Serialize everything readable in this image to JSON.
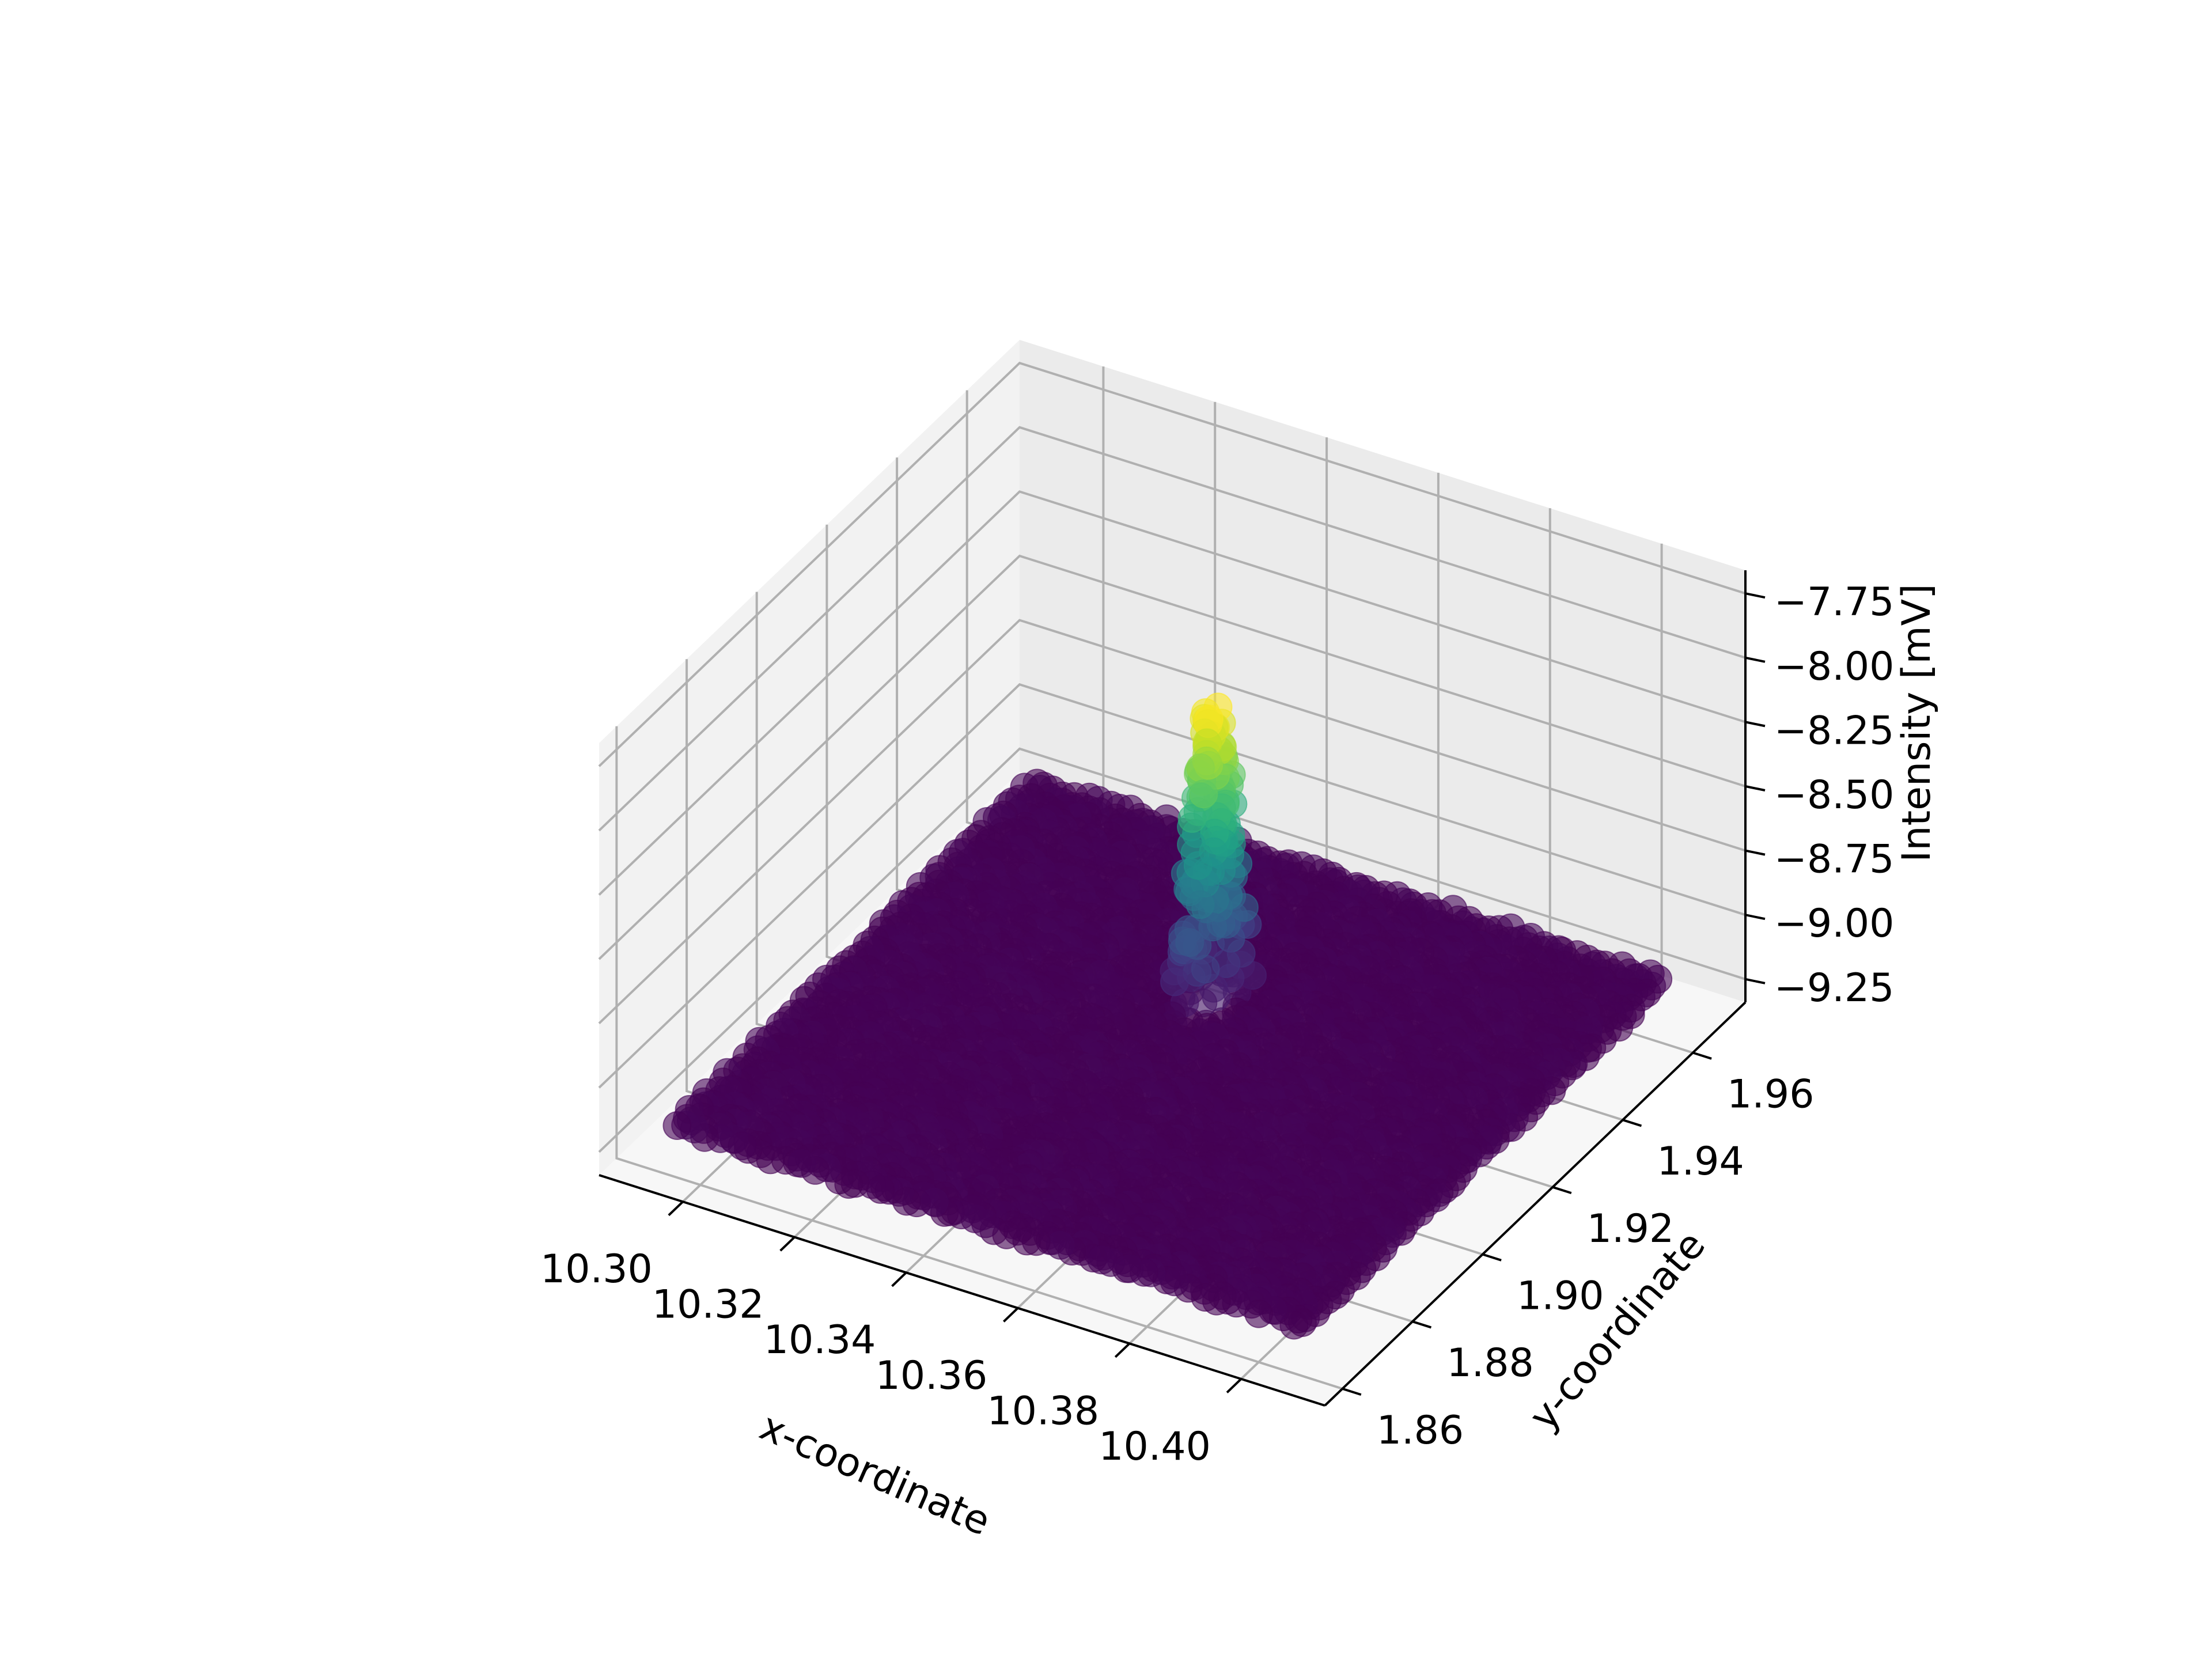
{
  "chart_data": {
    "type": "scatter",
    "title": "",
    "projection": "3d",
    "xlabel": "x-coordinate",
    "ylabel": "y-coordinate",
    "zlabel": "Intensity [mV]",
    "xlim": [
      10.285,
      10.415
    ],
    "ylim": [
      1.855,
      1.975
    ],
    "zlim": [
      -9.34,
      -7.66
    ],
    "x_ticks": [
      "10.30",
      "10.32",
      "10.34",
      "10.36",
      "10.38",
      "10.40"
    ],
    "y_ticks": [
      "1.86",
      "1.88",
      "1.90",
      "1.92",
      "1.94",
      "1.96"
    ],
    "z_ticks": [
      "−9.25",
      "−9.00",
      "−8.75",
      "−8.50",
      "−8.25",
      "−8.00",
      "−7.75"
    ],
    "colormap": "viridis",
    "color_by": "z",
    "marker_alpha": 0.6,
    "grid": true,
    "grid_shape": [
      60,
      56
    ],
    "baseline_intensity": -9.2,
    "peak": {
      "x_center": 10.348,
      "y_center": 1.93,
      "peak_intensity": -8.08,
      "description": "narrow vertical column of points rising from the flat baseline sheet"
    }
  }
}
